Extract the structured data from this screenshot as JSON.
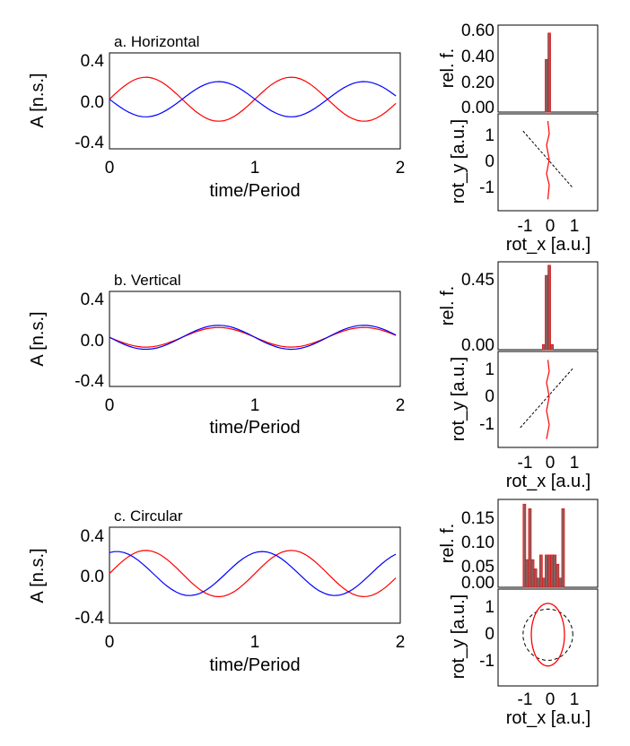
{
  "chart_data": [
    {
      "id": "a",
      "type": "line",
      "title": "a. Horizontal",
      "xlabel": "time/Period",
      "ylabel": "A [n.s.]",
      "xlim": [
        0,
        2
      ],
      "ylim": [
        -0.45,
        0.42
      ],
      "xticks": [
        "0",
        "1",
        "2"
      ],
      "yticks": [
        "0.4",
        "0.0",
        "-0.4"
      ],
      "series": [
        {
          "name": "red",
          "color": "#ff0000",
          "amp": 0.2,
          "phase": 0.0
        },
        {
          "name": "blue",
          "color": "#0000ff",
          "amp": -0.16,
          "phase": 0.0
        }
      ]
    },
    {
      "id": "a-hist",
      "type": "bar",
      "ylabel": "rel. f.",
      "yticks": [
        "0.60",
        "0.40",
        "0.20",
        "0.00"
      ],
      "ylim": [
        0,
        0.66
      ],
      "x": [
        -0.05,
        0.05
      ],
      "values": [
        0.4,
        0.6
      ]
    },
    {
      "id": "a-rot",
      "type": "scatter",
      "xlabel": "rot_x [a.u.]",
      "ylabel": "rot_y [a.u.]",
      "xlim": [
        -1.8,
        1.8
      ],
      "ylim": [
        -1.8,
        1.6
      ],
      "xticks": [
        "-1",
        "0",
        "1"
      ],
      "yticks": [
        "1",
        "0",
        "-1"
      ],
      "dashed_line": [
        [
          -0.9,
          1.0
        ],
        [
          0.9,
          -1.0
        ]
      ],
      "red_trace": [
        [
          0.0,
          1.35
        ],
        [
          0.05,
          0.9
        ],
        [
          -0.05,
          0.5
        ],
        [
          0.05,
          0.0
        ],
        [
          -0.05,
          -0.5
        ],
        [
          0.05,
          -0.9
        ],
        [
          0.0,
          -1.4
        ]
      ]
    },
    {
      "id": "b",
      "type": "line",
      "title": "b. Vertical",
      "xlabel": "time/Period",
      "ylabel": "A [n.s.]",
      "xlim": [
        0,
        2
      ],
      "ylim": [
        -0.45,
        0.42
      ],
      "xticks": [
        "0",
        "1",
        "2"
      ],
      "yticks": [
        "0.4",
        "0.0",
        "-0.4"
      ],
      "series": [
        {
          "name": "red",
          "color": "#ff0000",
          "amp": -0.09,
          "phase": 0.0
        },
        {
          "name": "blue",
          "color": "#0000ff",
          "amp": -0.11,
          "phase": 0.0
        }
      ]
    },
    {
      "id": "b-hist",
      "type": "bar",
      "ylabel": "rel. f.",
      "yticks": [
        "0.45",
        "0.00"
      ],
      "ylim": [
        0,
        0.52
      ],
      "x": [
        -0.15,
        -0.05,
        0.05,
        0.15
      ],
      "values": [
        0.03,
        0.44,
        0.5,
        0.03
      ]
    },
    {
      "id": "b-rot",
      "type": "scatter",
      "xlabel": "rot_x [a.u.]",
      "ylabel": "rot_y [a.u.]",
      "xlim": [
        -1.8,
        1.8
      ],
      "ylim": [
        -1.8,
        1.6
      ],
      "xticks": [
        "-1",
        "0",
        "1"
      ],
      "yticks": [
        "1",
        "0",
        "-1"
      ],
      "dashed_line": [
        [
          -1.0,
          -1.1
        ],
        [
          0.9,
          1.0
        ]
      ],
      "red_trace": [
        [
          0.0,
          1.3
        ],
        [
          0.05,
          0.9
        ],
        [
          -0.05,
          0.5
        ],
        [
          0.05,
          0.0
        ],
        [
          -0.05,
          -0.5
        ],
        [
          0.05,
          -1.0
        ],
        [
          -0.05,
          -1.5
        ]
      ]
    },
    {
      "id": "c",
      "type": "line",
      "title": "c. Circular",
      "xlabel": "time/Period",
      "ylabel": "A [n.s.]",
      "xlim": [
        0,
        2
      ],
      "ylim": [
        -0.45,
        0.42
      ],
      "xticks": [
        "0",
        "1",
        "2"
      ],
      "yticks": [
        "0.4",
        "0.0",
        "-0.4"
      ],
      "series": [
        {
          "name": "red",
          "color": "#ff0000",
          "amp": 0.21,
          "phase": 0.0
        },
        {
          "name": "blue",
          "color": "#0000ff",
          "amp": -0.2,
          "phase": 0.3
        }
      ]
    },
    {
      "id": "c-hist",
      "type": "bar",
      "ylabel": "rel. f.",
      "yticks": [
        "0.15",
        "0.10",
        "0.05",
        "0.00"
      ],
      "ylim": [
        0,
        0.19
      ],
      "x": [
        -0.85,
        -0.75,
        -0.65,
        -0.55,
        -0.45,
        -0.35,
        -0.25,
        -0.15,
        -0.05,
        0.05,
        0.15,
        0.25,
        0.35,
        0.45,
        0.55,
        0.65
      ],
      "values": [
        0.18,
        0.06,
        0.17,
        0.06,
        0.04,
        0.02,
        0.07,
        0.02,
        0.07,
        0.07,
        0.07,
        0.07,
        0.05,
        0.02,
        0.17,
        0.0
      ]
    },
    {
      "id": "c-rot",
      "type": "scatter",
      "xlabel": "rot_x [a.u.]",
      "ylabel": "rot_y [a.u.]",
      "xlim": [
        -1.8,
        1.8
      ],
      "ylim": [
        -1.8,
        1.6
      ],
      "xticks": [
        "-1",
        "0",
        "1"
      ],
      "yticks": [
        "1",
        "0",
        "-1"
      ],
      "dashed_circle_r": 0.9,
      "red_ellipse": {
        "rx": 0.6,
        "ry": 1.1,
        "cx": 0.0,
        "cy": 0.0
      }
    }
  ]
}
